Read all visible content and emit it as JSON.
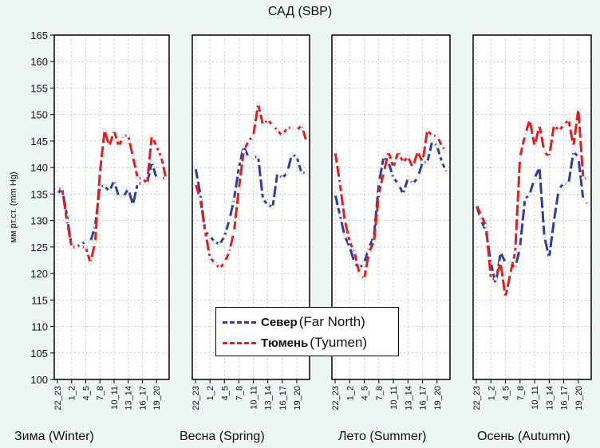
{
  "chart_data": {
    "type": "line",
    "title": "САД (SBP)",
    "ylabel": "мм рт.ст. (mm Hg)",
    "xlabel": "",
    "ylim": [
      100,
      165
    ],
    "yticks": [
      100,
      105,
      110,
      115,
      120,
      125,
      130,
      135,
      140,
      145,
      150,
      155,
      160,
      165
    ],
    "xticks": [
      "22_23",
      "1_2",
      "4_5",
      "7_8",
      "10_11",
      "13_14",
      "16_17",
      "19_20"
    ],
    "x": [
      "22_23",
      "23_24",
      "0_1",
      "1_2",
      "2_3",
      "3_4",
      "4_5",
      "5_6",
      "6_7",
      "7_8",
      "8_9",
      "9_10",
      "10_11",
      "11_12",
      "12_13",
      "13_14",
      "14_15",
      "15_16",
      "16_17",
      "17_18",
      "18_19",
      "19_20",
      "20_21",
      "21_22"
    ],
    "legend": [
      {
        "label_bold": "Север",
        "label": "(Far North)",
        "color": "#2c3ea3"
      },
      {
        "label_bold": "Тюмень",
        "label": "(Tyumen)",
        "color": "#e01e1e"
      }
    ],
    "panels": [
      {
        "name": "Зима (Winter)",
        "series": [
          {
            "name": "Север (Far North)",
            "values": [
              135,
              136,
              131,
              125,
              125,
              125.5,
              126,
              126,
              129,
              136.5,
              136.5,
              135.5,
              137.5,
              134.5,
              134.5,
              136,
              133,
              137,
              137,
              137,
              141,
              138,
              138,
              138
            ]
          },
          {
            "name": "Тюмень (Tyumen)",
            "values": [
              136,
              136,
              130,
              125,
              125,
              125,
              125,
              122,
              126,
              139,
              147,
              144,
              147,
              144,
              146,
              146,
              142,
              138,
              138,
              137,
              146,
              144,
              142,
              138
            ]
          }
        ]
      },
      {
        "name": "Весна (Spring)",
        "series": [
          {
            "name": "Север (Far North)",
            "values": [
              140,
              135,
              128,
              127,
              126,
              125.5,
              127,
              130,
              134,
              140,
              144,
              142,
              142,
              142,
              134,
              133,
              132.5,
              139,
              138,
              139,
              142.5,
              142,
              139,
              139
            ]
          },
          {
            "name": "Тюмень (Tyumen)",
            "values": [
              137,
              134,
              128,
              123,
              122,
              121,
              122,
              124,
              128,
              136,
              143,
              145,
              146,
              152,
              148,
              149,
              148,
              147,
              146,
              147.5,
              147.5,
              147,
              148,
              145
            ]
          }
        ]
      },
      {
        "name": "Лето (Summer)",
        "series": [
          {
            "name": "Север (Far North)",
            "values": [
              135,
              131,
              127,
              125,
              122,
              121,
              122,
              125,
              127,
              137,
              142,
              141,
              138,
              137,
              135,
              138,
              137,
              138,
              141,
              141,
              145,
              144,
              141,
              139
            ]
          },
          {
            "name": "Тюмень (Tyumen)",
            "values": [
              143,
              137,
              130,
              126,
              124,
              120,
              119,
              124,
              126,
              135,
              139,
              143,
              140,
              143,
              141,
              142,
              140,
              143,
              141,
              147,
              146,
              146,
              144,
              143
            ]
          }
        ]
      },
      {
        "name": "Осень (Autumn)",
        "series": [
          {
            "name": "Север (Far North)",
            "values": [
              133,
              130,
              128,
              122,
              118,
              124,
              122,
              122,
              121,
              125,
              134,
              135,
              138,
              140,
              127,
              123,
              130,
              136,
              137,
              137,
              143,
              142,
              134,
              133
            ]
          },
          {
            "name": "Тюмень (Tyumen)",
            "values": [
              133,
              131,
              129,
              119,
              119,
              122,
              115.5,
              120,
              124,
              142,
              146,
              149,
              144,
              148,
              143,
              142,
              148,
              147,
              148,
              149,
              144,
              151,
              138,
              138
            ]
          }
        ]
      }
    ]
  }
}
